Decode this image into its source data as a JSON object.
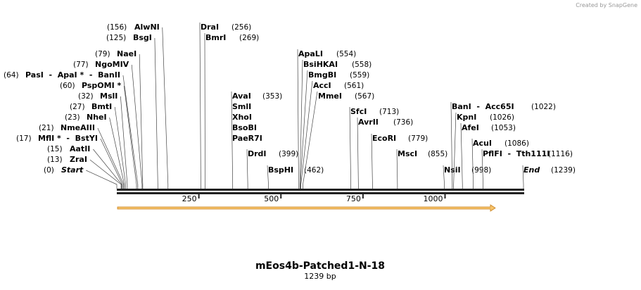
{
  "brand": "Created by SnapGene",
  "title": "mEos4b-Patched1-N-18",
  "subtitle": "1239 bp",
  "ruler_range": [
    0,
    1239
  ],
  "ruler_ticks": [
    250,
    500,
    750,
    1000
  ],
  "sites": [
    {
      "names": [
        "Start"
      ],
      "position": {
        "value": 0,
        "label": "(0)"
      }
    },
    {
      "names": [
        "ZraI"
      ],
      "position": {
        "value": 13,
        "label": "(13)"
      }
    },
    {
      "names": [
        "AatII"
      ],
      "position": {
        "value": 15,
        "label": "(15)"
      }
    },
    {
      "names": [
        "MflI *  -  BstYI"
      ],
      "position": {
        "value": 17,
        "label": "(17)"
      }
    },
    {
      "names": [
        "NmeAIII"
      ],
      "position": {
        "value": 21,
        "label": "(21)"
      }
    },
    {
      "names": [
        "NheI"
      ],
      "position": {
        "value": 23,
        "label": "(23)"
      }
    },
    {
      "names": [
        "BmtI"
      ],
      "position": {
        "value": 27,
        "label": "(27)"
      }
    },
    {
      "names": [
        "MslI"
      ],
      "position": {
        "value": 32,
        "label": "(32)"
      }
    },
    {
      "names": [
        "PspOMI *"
      ],
      "position": {
        "value": 60,
        "label": "(60)"
      }
    },
    {
      "names": [
        "PasI  -  ApaI *  -  BanII"
      ],
      "position": {
        "value": 64,
        "label": "(64)"
      }
    },
    {
      "names": [
        "NgoMIV"
      ],
      "position": {
        "value": 77,
        "label": "(77)"
      }
    },
    {
      "names": [
        "NaeI"
      ],
      "position": {
        "value": 79,
        "label": "(79)"
      }
    },
    {
      "names": [
        "BsgI"
      ],
      "position": {
        "value": 125,
        "label": "(125)"
      }
    },
    {
      "names": [
        "AlwNI"
      ],
      "position": {
        "value": 156,
        "label": "(156)"
      }
    },
    {
      "names": [
        "DraI"
      ],
      "position": {
        "value": 256,
        "label": "(256)"
      }
    },
    {
      "names": [
        "BmrI"
      ],
      "position": {
        "value": 269,
        "label": "(269)"
      }
    },
    {
      "names": [
        "AvaI",
        "SmlI",
        "XhoI",
        "BsoBI",
        "PaeR7I"
      ],
      "position": {
        "value": 353,
        "label": "(353)"
      }
    },
    {
      "names": [
        "DrdI"
      ],
      "position": {
        "value": 399,
        "label": "(399)"
      }
    },
    {
      "names": [
        "BspHI"
      ],
      "position": {
        "value": 462,
        "label": "(462)"
      }
    },
    {
      "names": [
        "ApaLI"
      ],
      "position": {
        "value": 554,
        "label": "(554)"
      }
    },
    {
      "names": [
        "BsiHKAI"
      ],
      "position": {
        "value": 558,
        "label": "(558)"
      }
    },
    {
      "names": [
        "BmgBI"
      ],
      "position": {
        "value": 559,
        "label": "(559)"
      }
    },
    {
      "names": [
        "AccI"
      ],
      "position": {
        "value": 561,
        "label": "(561)"
      }
    },
    {
      "names": [
        "MmeI"
      ],
      "position": {
        "value": 567,
        "label": "(567)"
      }
    },
    {
      "names": [
        "SfcI"
      ],
      "position": {
        "value": 713,
        "label": "(713)"
      }
    },
    {
      "names": [
        "AvrII"
      ],
      "position": {
        "value": 736,
        "label": "(736)"
      }
    },
    {
      "names": [
        "EcoRI"
      ],
      "position": {
        "value": 779,
        "label": "(779)"
      }
    },
    {
      "names": [
        "MscI"
      ],
      "position": {
        "value": 855,
        "label": "(855)"
      }
    },
    {
      "names": [
        "NsiI"
      ],
      "position": {
        "value": 998,
        "label": "(998)"
      }
    },
    {
      "names": [
        "BanI  -  Acc65I"
      ],
      "position": {
        "value": 1022,
        "label": "(1022)"
      }
    },
    {
      "names": [
        "KpnI"
      ],
      "position": {
        "value": 1026,
        "label": "(1026)"
      }
    },
    {
      "names": [
        "AfeI"
      ],
      "position": {
        "value": 1053,
        "label": "(1053)"
      }
    },
    {
      "names": [
        "AcuI"
      ],
      "position": {
        "value": 1086,
        "label": "(1086)"
      }
    },
    {
      "names": [
        "PflFI  -  Tth111I"
      ],
      "position": {
        "value": 1116,
        "label": "(1116)"
      }
    },
    {
      "names": [
        "End"
      ],
      "position": {
        "value": 1239,
        "label": "(1239)"
      }
    }
  ]
}
